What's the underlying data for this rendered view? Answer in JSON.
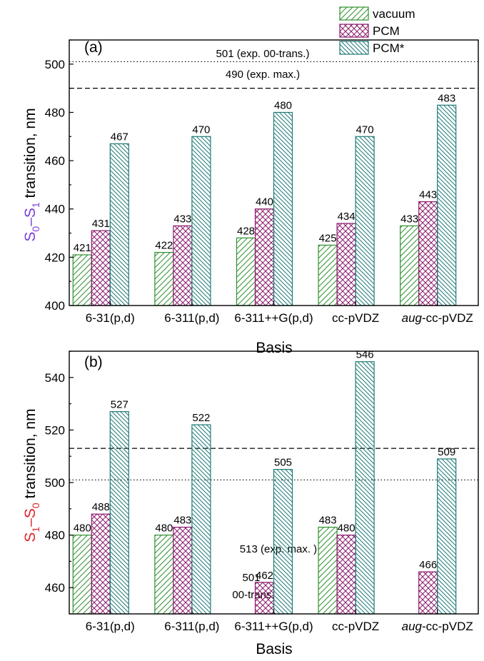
{
  "colors": {
    "vacuum": "#2f8f2f",
    "pcm": "#8b1a6b",
    "pcm_star": "#1f7a78",
    "purple": "#7b3fd6",
    "red": "#e0232e"
  },
  "legend": {
    "vacuum": "vacuum",
    "pcm": "PCM",
    "pcm_star": "PCM*"
  },
  "chart_data": [
    {
      "panel_label": "(a)",
      "type": "bar",
      "categories": [
        "6-31(p,d)",
        "6-311(p,d)",
        "6-311++G(p,d)",
        "cc-pVDZ",
        "aug-cc-pVDZ"
      ],
      "series": [
        {
          "name": "vacuum",
          "values": [
            421,
            422,
            428,
            425,
            433
          ]
        },
        {
          "name": "PCM",
          "values": [
            431,
            433,
            440,
            434,
            443
          ]
        },
        {
          "name": "PCM*",
          "values": [
            467,
            470,
            480,
            470,
            483
          ]
        }
      ],
      "ylim": [
        400,
        510
      ],
      "yticks": [
        400,
        420,
        440,
        460,
        480,
        500
      ],
      "xlabel": "Basis",
      "ylabel": {
        "s1": "S",
        "sub1": "0",
        "dash": "–",
        "s2": "S",
        "sub2": "1",
        "rest": " transition, nm"
      },
      "reference_lines": [
        {
          "value": 501,
          "style": "dotted",
          "label": "501 (exp. 00-trans.)"
        },
        {
          "value": 490,
          "style": "dashed",
          "label": "490 (exp. max.)"
        }
      ]
    },
    {
      "panel_label": "(b)",
      "type": "bar",
      "categories": [
        "6-31(p,d)",
        "6-311(p,d)",
        "6-311++G(p,d)",
        "cc-pVDZ",
        "aug-cc-pVDZ"
      ],
      "series": [
        {
          "name": "vacuum",
          "values": [
            480,
            480,
            null,
            483,
            null
          ]
        },
        {
          "name": "PCM",
          "values": [
            488,
            483,
            462,
            480,
            466
          ]
        },
        {
          "name": "PCM*",
          "values": [
            527,
            522,
            505,
            546,
            509
          ]
        }
      ],
      "ylim": [
        450,
        550
      ],
      "yticks": [
        460,
        480,
        500,
        520,
        540
      ],
      "xlabel": "Basis",
      "ylabel": {
        "s1": "S",
        "sub1": "1",
        "dash": "–",
        "s2": "S",
        "sub2": "0",
        "rest": " transition, nm"
      },
      "reference_lines": [
        {
          "value": 513,
          "style": "dashed",
          "label": "513 (exp. max. )"
        },
        {
          "value": 501,
          "style": "dotted",
          "label_lines": [
            "501",
            "00-trans."
          ]
        }
      ]
    }
  ]
}
